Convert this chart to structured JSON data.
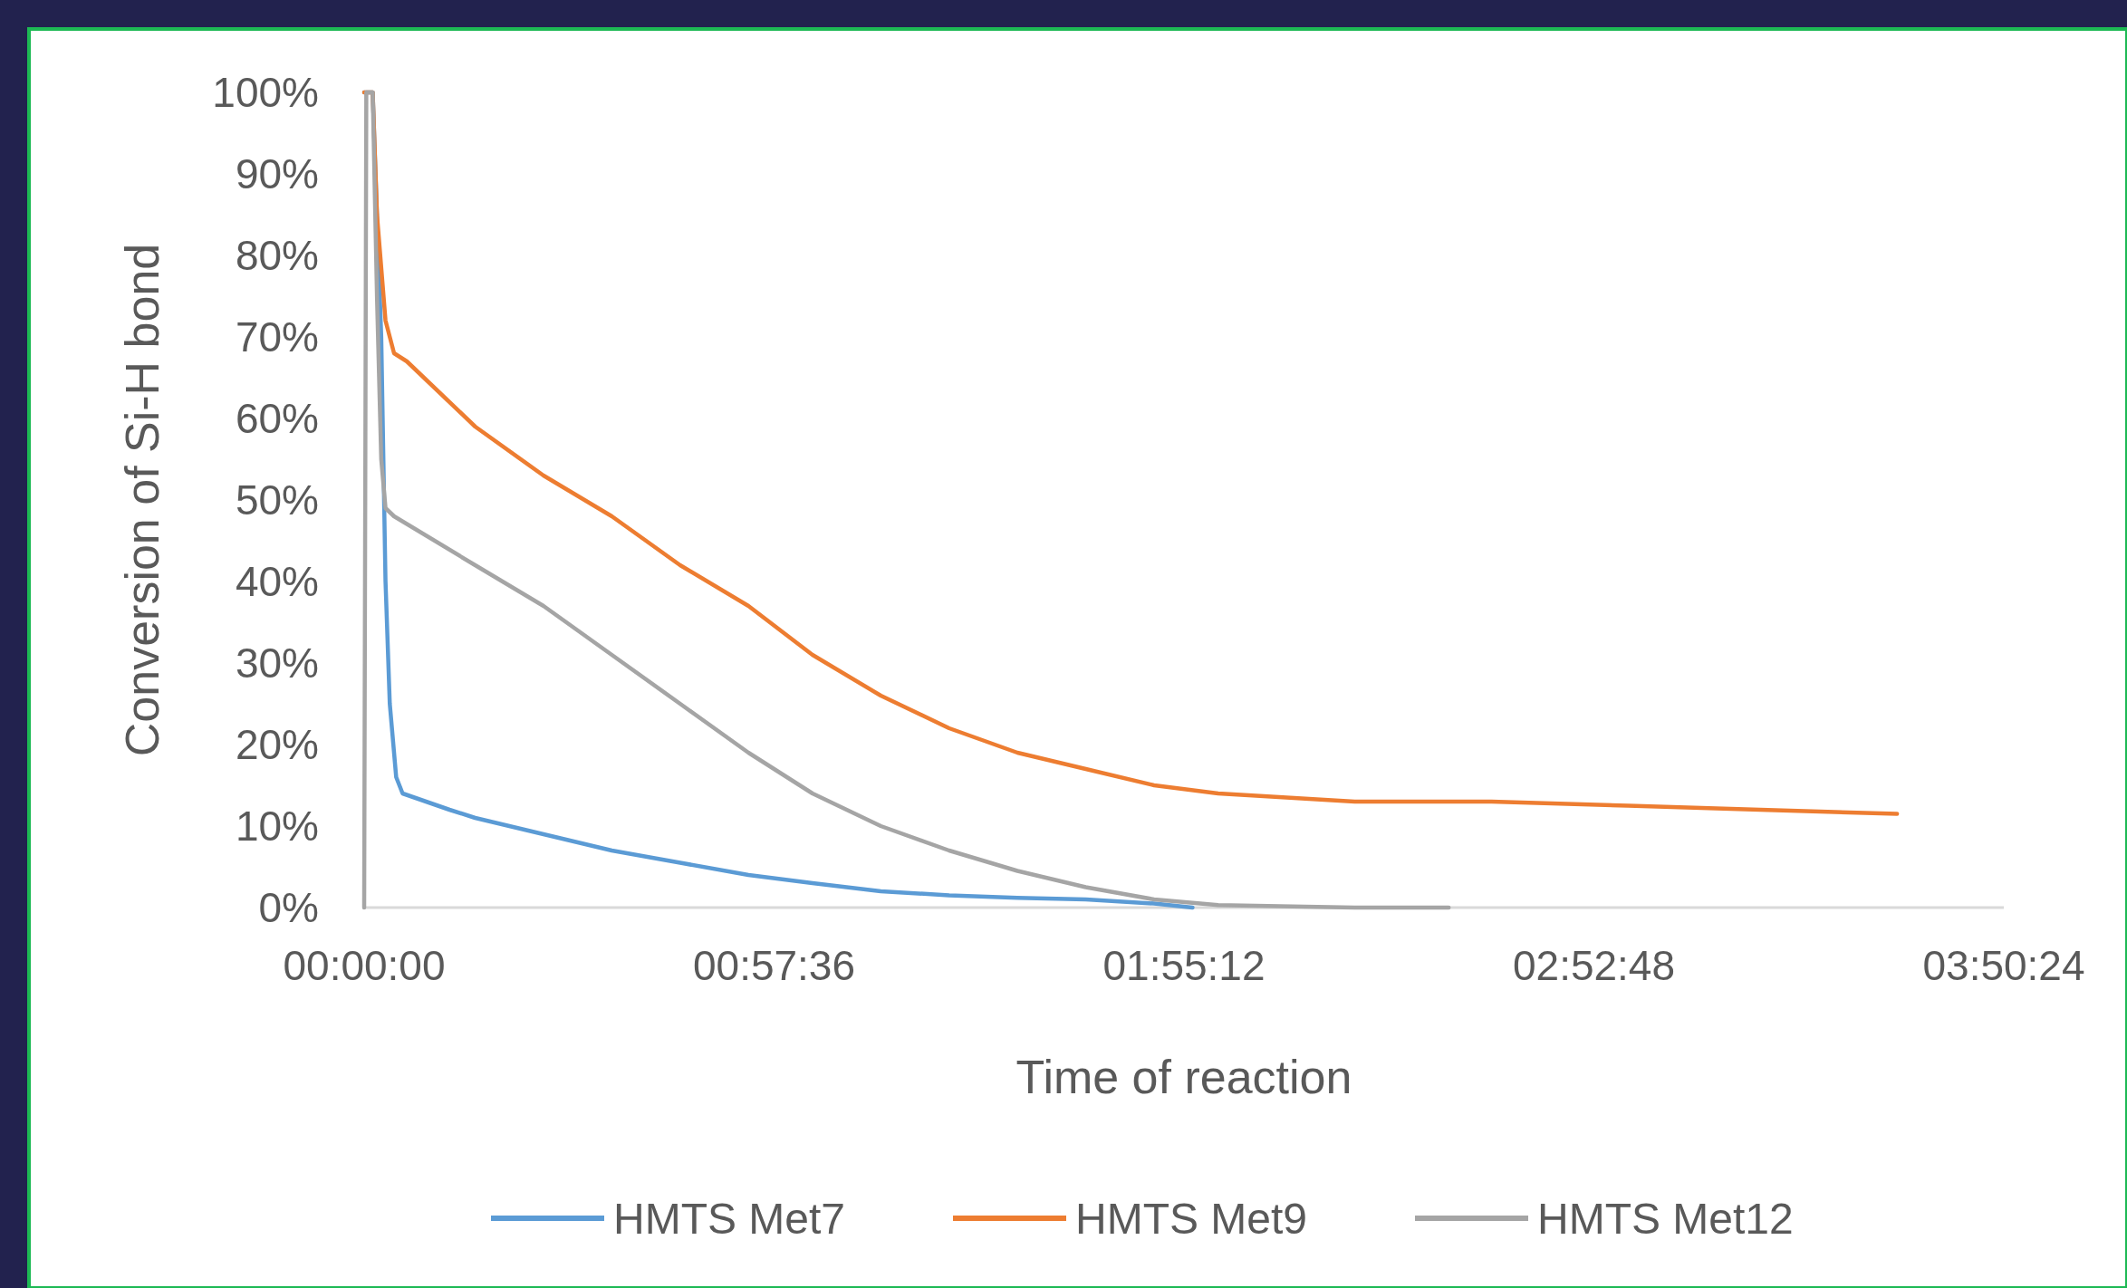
{
  "chart_data": {
    "type": "line",
    "xlabel": "Time of reaction",
    "ylabel": "Conversion of Si-H bond",
    "xlim": [
      0,
      3.84
    ],
    "xticks": [
      {
        "value": 0,
        "label": "00:00:00"
      },
      {
        "value": 0.96,
        "label": "00:57:36"
      },
      {
        "value": 1.92,
        "label": "01:55:12"
      },
      {
        "value": 2.88,
        "label": "02:52:48"
      },
      {
        "value": 3.84,
        "label": "03:50:24"
      }
    ],
    "ylim": [
      0,
      100
    ],
    "yticks": [
      {
        "value": 0,
        "label": "0%"
      },
      {
        "value": 10,
        "label": "10%"
      },
      {
        "value": 20,
        "label": "20%"
      },
      {
        "value": 30,
        "label": "30%"
      },
      {
        "value": 40,
        "label": "40%"
      },
      {
        "value": 50,
        "label": "50%"
      },
      {
        "value": 60,
        "label": "60%"
      },
      {
        "value": 70,
        "label": "70%"
      },
      {
        "value": 80,
        "label": "80%"
      },
      {
        "value": 90,
        "label": "90%"
      },
      {
        "value": 100,
        "label": "100%"
      }
    ],
    "grid": false,
    "legend": "bottom",
    "line_style": "solid",
    "series": [
      {
        "name": "HMTS Met7",
        "color": "#5b9bd5",
        "x": [
          0,
          0.02,
          0.04,
          0.05,
          0.06,
          0.075,
          0.09,
          0.2,
          0.26,
          0.42,
          0.58,
          0.74,
          0.9,
          1.05,
          1.21,
          1.37,
          1.53,
          1.69,
          1.85,
          1.94
        ],
        "values": [
          100,
          100,
          70,
          40,
          25,
          16,
          14,
          12,
          11,
          9,
          7,
          5.5,
          4,
          3,
          2,
          1.5,
          1.2,
          1,
          0.5,
          0
        ]
      },
      {
        "name": "HMTS Met9",
        "color": "#ed7d31",
        "x": [
          0,
          0.02,
          0.03,
          0.05,
          0.07,
          0.1,
          0.26,
          0.42,
          0.58,
          0.74,
          0.9,
          1.05,
          1.21,
          1.37,
          1.53,
          1.69,
          1.85,
          2.0,
          2.32,
          2.64,
          2.96,
          3.27,
          3.59
        ],
        "values": [
          100,
          100,
          85,
          72,
          68,
          67,
          59,
          53,
          48,
          42,
          37,
          31,
          26,
          22,
          19,
          17,
          15,
          14,
          13,
          13,
          12.5,
          12,
          11.5
        ]
      },
      {
        "name": "HMTS Met12",
        "color": "#a5a5a5",
        "x": [
          0,
          0.005,
          0.02,
          0.03,
          0.04,
          0.05,
          0.07,
          0.26,
          0.42,
          0.58,
          0.74,
          0.9,
          1.05,
          1.21,
          1.37,
          1.53,
          1.69,
          1.85,
          2.0,
          2.32,
          2.54
        ],
        "values": [
          0,
          100,
          100,
          75,
          55,
          49,
          48,
          42,
          37,
          31,
          25,
          19,
          14,
          10,
          7,
          4.5,
          2.5,
          1,
          0.3,
          0,
          0
        ]
      }
    ]
  }
}
